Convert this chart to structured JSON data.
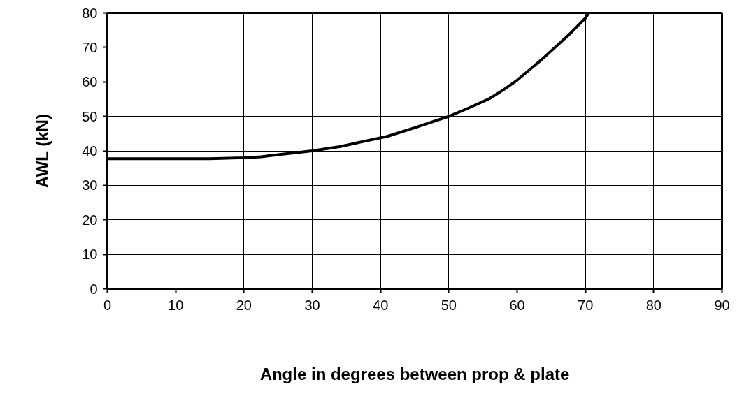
{
  "chart_data": {
    "type": "line",
    "xlabel": "Angle in degrees between prop & plate",
    "ylabel": "AWL (kN)",
    "x": [
      0,
      15,
      20,
      22.5,
      25,
      30,
      34,
      37,
      41,
      45,
      50,
      53,
      56,
      58,
      60,
      63.5,
      67.5,
      70,
      70.5
    ],
    "series": [
      {
        "color": "#000000",
        "values": [
          37.7,
          37.7,
          38,
          38.3,
          38.9,
          40,
          41.2,
          42.5,
          44.2,
          46.7,
          50,
          52.5,
          55.2,
          57.7,
          60.5,
          66.3,
          73.5,
          78.5,
          80
        ]
      }
    ],
    "xlim": [
      0,
      90
    ],
    "xticks": [
      0,
      10,
      20,
      30,
      40,
      50,
      60,
      70,
      80,
      90
    ],
    "ylim": [
      0,
      80
    ],
    "yticks": [
      0,
      10,
      20,
      30,
      40,
      50,
      60,
      70,
      80
    ],
    "grid": true,
    "marker": "none",
    "line_style": "solid"
  }
}
